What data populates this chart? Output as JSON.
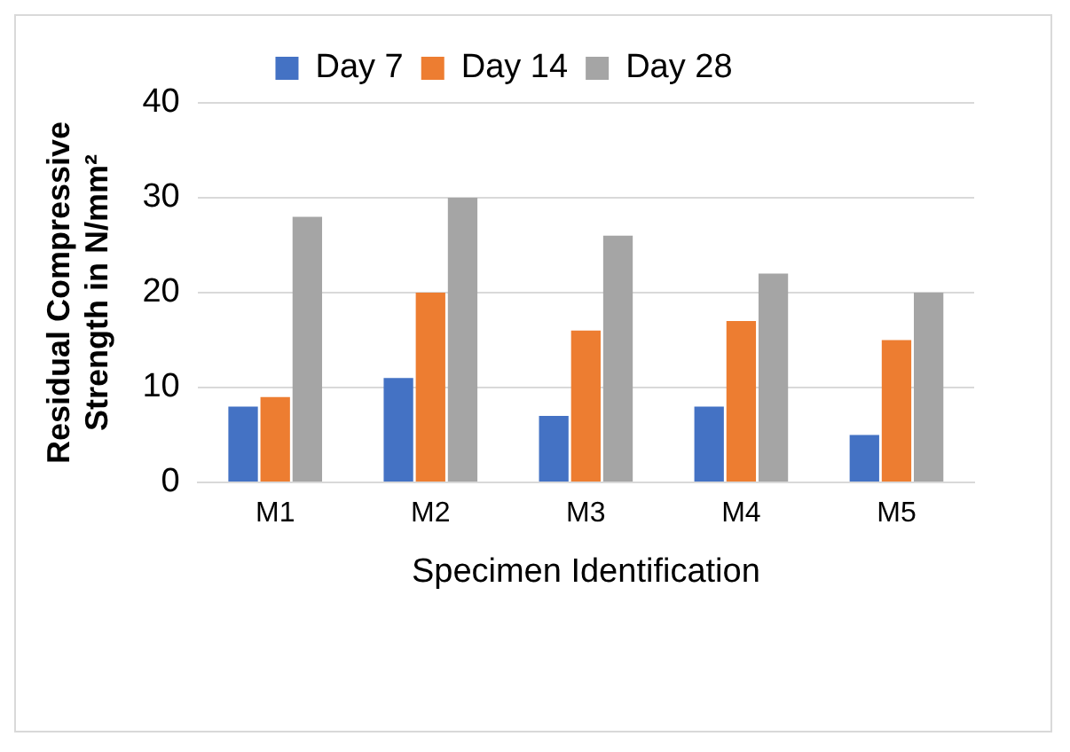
{
  "chart_data": {
    "type": "bar",
    "xlabel": "Specimen Identification",
    "ylabel": "Residual Compressive Strength in N/mm²",
    "categories": [
      "M1",
      "M2",
      "M3",
      "M4",
      "M5"
    ],
    "series": [
      {
        "name": "Day 7",
        "color": "#4472c4",
        "values": [
          8,
          11,
          7,
          8,
          5
        ]
      },
      {
        "name": "Day 14",
        "color": "#ed7d31",
        "values": [
          9,
          20,
          16,
          17,
          15
        ]
      },
      {
        "name": "Day 28",
        "color": "#a5a5a5",
        "values": [
          28,
          30,
          26,
          22,
          20
        ]
      }
    ],
    "ylim": [
      0,
      40
    ],
    "yticks": [
      0,
      10,
      20,
      30,
      40
    ],
    "grid": "y",
    "legend": "top"
  }
}
